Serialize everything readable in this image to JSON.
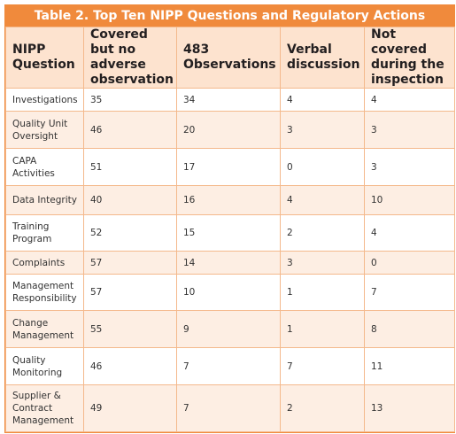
{
  "table": {
    "title": "Table 2. Top Ten NIPP Questions and Regulatory Actions",
    "header": [
      "NIPP Question",
      "Covered but no adverse observation",
      "483 Observations",
      "Verbal discussion",
      "Not covered during the inspection"
    ],
    "rows": [
      [
        "Investigations",
        35,
        34,
        4,
        4
      ],
      [
        "Quality Unit Oversight",
        46,
        20,
        3,
        3
      ],
      [
        "CAPA Activities",
        51,
        17,
        0,
        3
      ],
      [
        "Data Integrity",
        40,
        16,
        4,
        10
      ],
      [
        "Training Program",
        52,
        15,
        2,
        4
      ],
      [
        "Complaints",
        57,
        14,
        3,
        0
      ],
      [
        "Management Responsibility",
        57,
        10,
        1,
        7
      ],
      [
        "Change Management",
        55,
        9,
        1,
        8
      ],
      [
        "Quality Monitoring",
        46,
        7,
        7,
        11
      ],
      [
        "Supplier & Contract Management",
        49,
        7,
        2,
        13
      ]
    ]
  }
}
